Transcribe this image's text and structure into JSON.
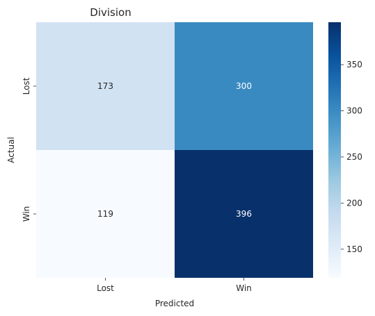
{
  "chart_data": {
    "type": "heatmap",
    "title": "Division",
    "xlabel": "Predicted",
    "ylabel": "Actual",
    "x_categories": [
      "Lost",
      "Win"
    ],
    "y_categories": [
      "Lost",
      "Win"
    ],
    "values": [
      [
        173,
        300
      ],
      [
        119,
        396
      ]
    ],
    "colormap": "Blues",
    "colorbar": {
      "min": 119,
      "max": 396,
      "ticks": [
        150,
        200,
        250,
        300,
        350
      ]
    }
  }
}
